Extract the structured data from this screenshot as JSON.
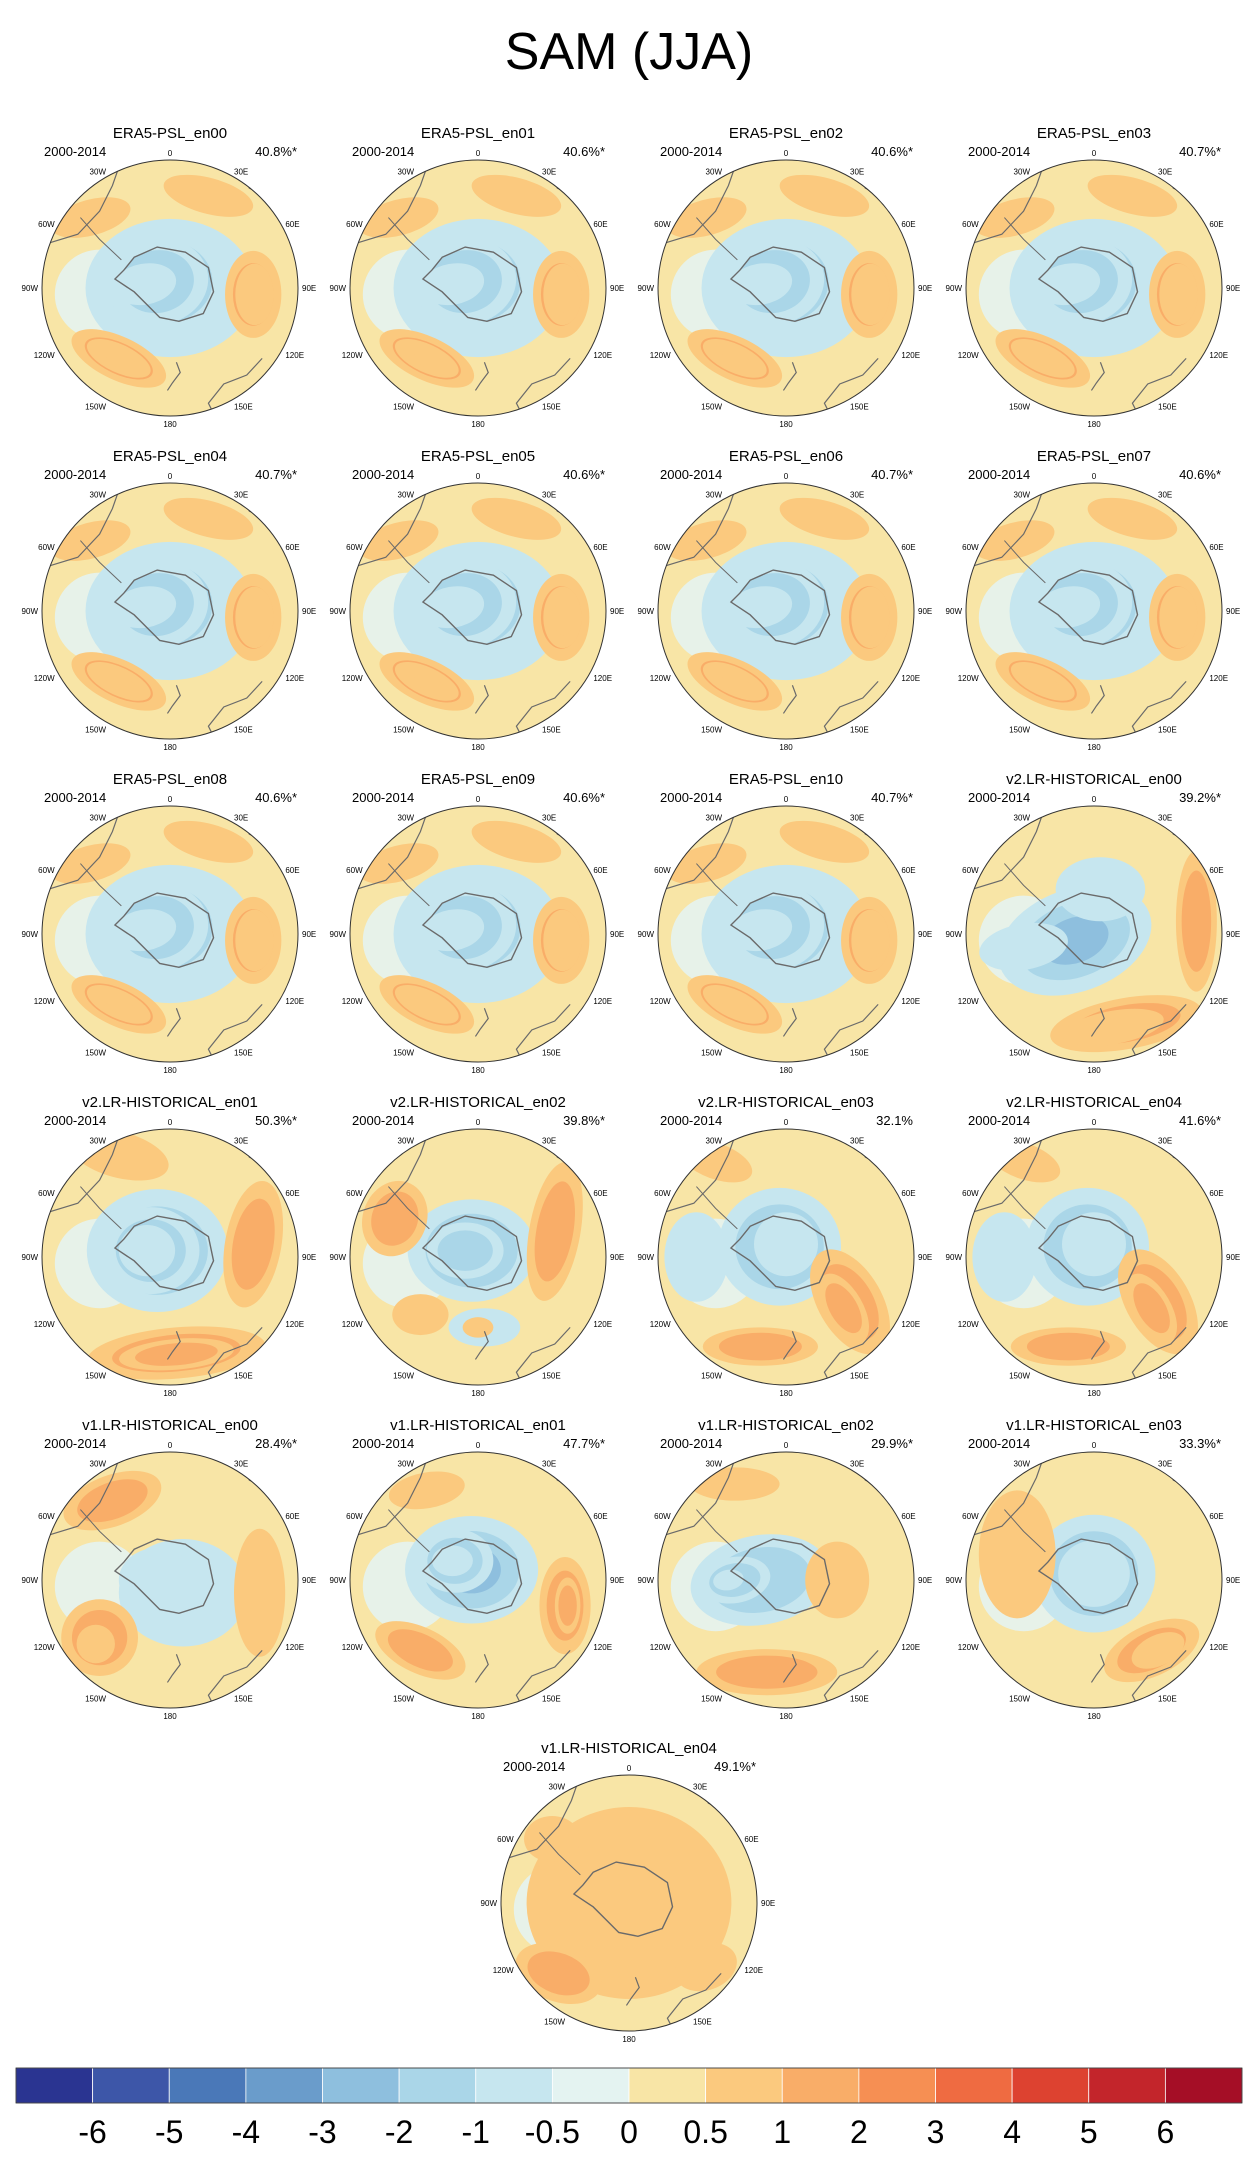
{
  "title": "SAM (JJA)",
  "period_label": "2000-2014",
  "map_labels": {
    "top": "0",
    "left": [
      "30W",
      "60W",
      "90W",
      "120W",
      "150W"
    ],
    "bottom": "180",
    "right": [
      "30E",
      "60E",
      "90E",
      "120E",
      "150E"
    ]
  },
  "panels": [
    {
      "name": "ERA5-PSL_en00",
      "variance": "40.8%*",
      "style": "era5"
    },
    {
      "name": "ERA5-PSL_en01",
      "variance": "40.6%*",
      "style": "era5"
    },
    {
      "name": "ERA5-PSL_en02",
      "variance": "40.6%*",
      "style": "era5"
    },
    {
      "name": "ERA5-PSL_en03",
      "variance": "40.7%*",
      "style": "era5"
    },
    {
      "name": "ERA5-PSL_en04",
      "variance": "40.7%*",
      "style": "era5"
    },
    {
      "name": "ERA5-PSL_en05",
      "variance": "40.6%*",
      "style": "era5"
    },
    {
      "name": "ERA5-PSL_en06",
      "variance": "40.7%*",
      "style": "era5"
    },
    {
      "name": "ERA5-PSL_en07",
      "variance": "40.6%*",
      "style": "era5"
    },
    {
      "name": "ERA5-PSL_en08",
      "variance": "40.6%*",
      "style": "era5"
    },
    {
      "name": "ERA5-PSL_en09",
      "variance": "40.6%*",
      "style": "era5"
    },
    {
      "name": "ERA5-PSL_en10",
      "variance": "40.7%*",
      "style": "era5"
    },
    {
      "name": "v2.LR-HISTORICAL_en00",
      "variance": "39.2%*",
      "style": "v2a"
    },
    {
      "name": "v2.LR-HISTORICAL_en01",
      "variance": "50.3%*",
      "style": "v2b"
    },
    {
      "name": "v2.LR-HISTORICAL_en02",
      "variance": "39.8%*",
      "style": "v2c"
    },
    {
      "name": "v2.LR-HISTORICAL_en03",
      "variance": "32.1%",
      "style": "v2d"
    },
    {
      "name": "v2.LR-HISTORICAL_en04",
      "variance": "41.6%*",
      "style": "v2d"
    },
    {
      "name": "v1.LR-HISTORICAL_en00",
      "variance": "28.4%*",
      "style": "v1a"
    },
    {
      "name": "v1.LR-HISTORICAL_en01",
      "variance": "47.7%*",
      "style": "v1b"
    },
    {
      "name": "v1.LR-HISTORICAL_en02",
      "variance": "29.9%*",
      "style": "v1c"
    },
    {
      "name": "v1.LR-HISTORICAL_en03",
      "variance": "33.3%*",
      "style": "v1d"
    },
    {
      "name": "v1.LR-HISTORICAL_en04",
      "variance": "49.1%*",
      "style": "v1e"
    }
  ],
  "colorbar": {
    "colors": [
      "#2a3491",
      "#3d56a8",
      "#4a78b8",
      "#6a9ccb",
      "#8ebfde",
      "#aad6e8",
      "#c6e6ef",
      "#e4f3f1",
      "#f8e5a6",
      "#fbc97e",
      "#f9ad68",
      "#f68f53",
      "#ef6b41",
      "#dd4230",
      "#c3252b",
      "#a50e26"
    ],
    "labels": [
      "-6",
      "-5",
      "-4",
      "-3",
      "-2",
      "-1",
      "-0.5",
      "0",
      "0.5",
      "1",
      "2",
      "3",
      "4",
      "5",
      "6"
    ]
  },
  "colors": {
    "land_outline": "#6a6a6a",
    "map_border": "#333333"
  }
}
